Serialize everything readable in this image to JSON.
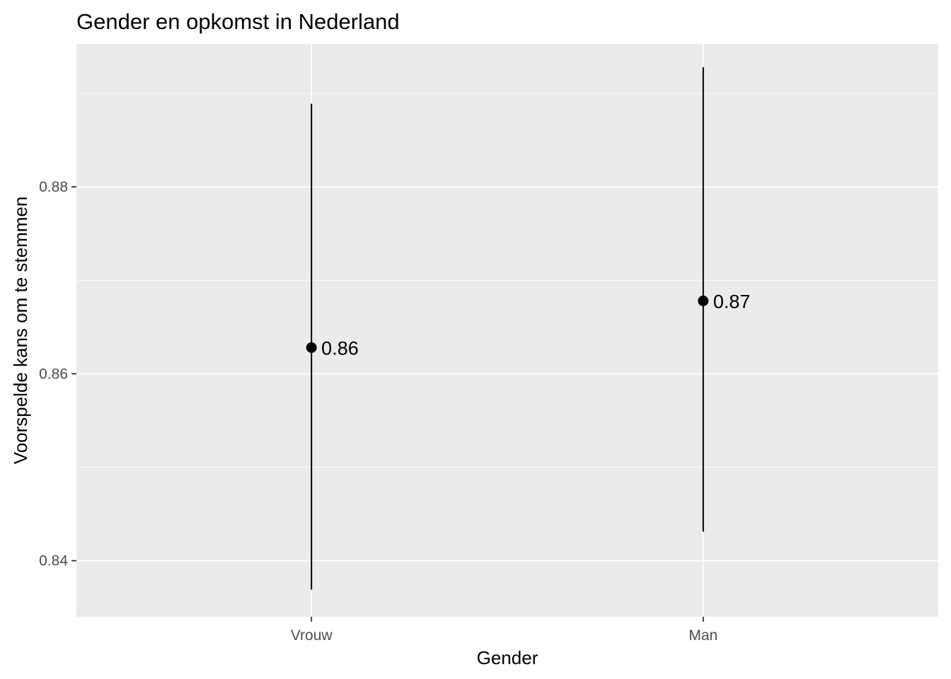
{
  "chart_data": {
    "type": "scatter",
    "title": "Gender en opkomst in Nederland",
    "xlabel": "Gender",
    "ylabel": "Voorspelde kans om te stemmen",
    "categories": [
      "Vrouw",
      "Man"
    ],
    "values": [
      0.8628,
      0.8678
    ],
    "ci_lower": [
      0.8369,
      0.8431
    ],
    "ci_upper": [
      0.8889,
      0.8928
    ],
    "point_labels": [
      "0.86",
      "0.87"
    ],
    "ylim": [
      0.834,
      0.8953
    ],
    "yticks": [
      0.84,
      0.86,
      0.88
    ],
    "ytick_labels": [
      "0.84",
      "0.86",
      "0.88"
    ],
    "grid": true,
    "legend": "none",
    "colors": {
      "panel_background": "#ebebeb",
      "grid": "#ffffff",
      "marks": "#000000",
      "tick_text": "#4d4d4d",
      "tick_mark": "#333333"
    }
  }
}
